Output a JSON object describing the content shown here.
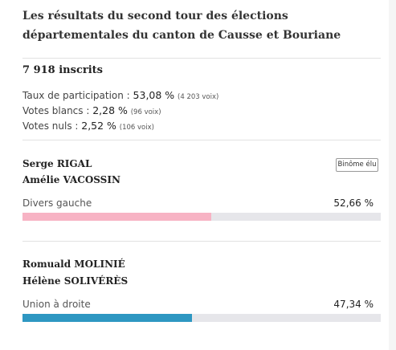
{
  "title": "Les résultats du second tour des élections départementales du canton de Causse et Bouriane",
  "inscrits": "7 918 inscrits",
  "stats": {
    "participation": {
      "label": "Taux de participation : ",
      "value": "53,08 %",
      "voix": "(4 203 voix)"
    },
    "blancs": {
      "label": "Votes blancs : ",
      "value": "2,28 %",
      "voix": "(96 voix)"
    },
    "nuls": {
      "label": "Votes nuls : ",
      "value": "2,52 %",
      "voix": "(106 voix)"
    }
  },
  "results": [
    {
      "candidate1": "Serge RIGAL",
      "candidate2": "Amélie VACOSSIN",
      "badge": "Binôme élu",
      "party": "Divers gauche",
      "percent_label": "52,66 %",
      "percent": 52.66,
      "color": "#f7b3c4"
    },
    {
      "candidate1": "Romuald MOLINIÉ",
      "candidate2": "Hélène SOLIVÉRÈS",
      "party": "Union à droite",
      "percent_label": "47,34 %",
      "percent": 47.34,
      "color": "#2e97c2"
    }
  ]
}
